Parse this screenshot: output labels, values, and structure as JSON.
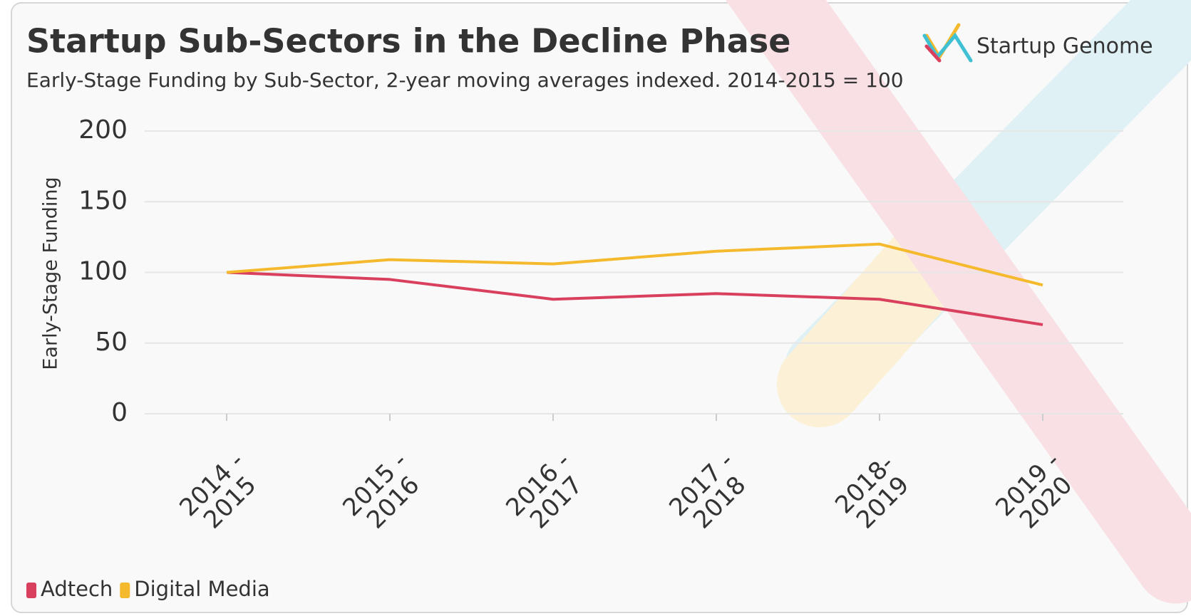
{
  "logo": "Startup Genome",
  "chart_data": {
    "type": "line",
    "title": "Startup Sub-Sectors in the Decline Phase",
    "subtitle": "Early-Stage Funding by Sub-Sector, 2-year moving averages indexed. 2014-2015 = 100",
    "y_label": "Early-Stage Funding",
    "categories": [
      "2014 -\n2015",
      "2015 -\n2016",
      "2016 -\n2017",
      "2017 -\n2018",
      "2018-\n2019",
      "2019 -\n2020"
    ],
    "series": [
      {
        "name": "Adtech",
        "color": "#d9405e",
        "values": [
          100,
          95,
          81,
          85,
          81,
          63
        ]
      },
      {
        "name": "Digital Media",
        "color": "#f5b92e",
        "values": [
          100,
          109,
          106,
          115,
          120,
          91
        ]
      }
    ],
    "ylim": [
      0,
      200
    ],
    "yticks": [
      0,
      50,
      100,
      150,
      200
    ],
    "grid": true,
    "legend": "bottom-left"
  }
}
